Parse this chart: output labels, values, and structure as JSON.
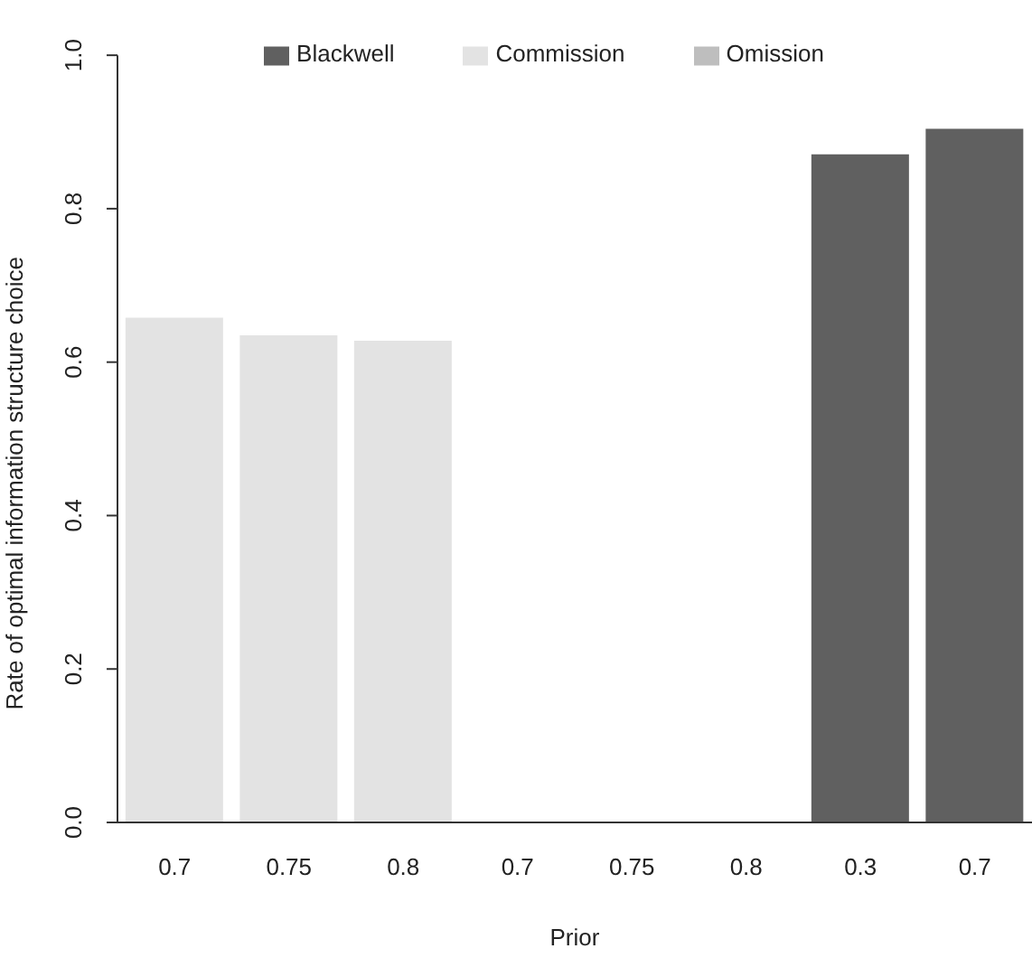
{
  "chart_data": {
    "type": "bar",
    "xlabel": "Prior",
    "ylabel": "Rate of optimal information structure choice",
    "categories": [
      "0.7",
      "0.75",
      "0.8",
      "0.7",
      "0.75",
      "0.8",
      "0.3",
      "0.7"
    ],
    "series": [
      {
        "name": "Commission",
        "color": "#e3e3e3",
        "values": [
          0.658,
          0.635,
          0.628,
          null,
          null,
          null,
          null,
          null
        ]
      },
      {
        "name": "Omission",
        "color": "#bebebe",
        "values": [
          null,
          null,
          null,
          0,
          0,
          0,
          null,
          null
        ]
      },
      {
        "name": "Blackwell",
        "color": "#606060",
        "values": [
          null,
          null,
          null,
          null,
          null,
          null,
          0.871,
          0.904
        ]
      }
    ],
    "ylim": [
      0,
      1
    ],
    "yticks": [
      {
        "value": 0,
        "label": "0.0"
      },
      {
        "value": 0.2,
        "label": "0.2"
      },
      {
        "value": 0.4,
        "label": "0.4"
      },
      {
        "value": 0.6,
        "label": "0.6"
      },
      {
        "value": 0.8,
        "label": "0.8"
      },
      {
        "value": 1,
        "label": "1.0"
      }
    ],
    "legend": "top",
    "grid": false
  }
}
